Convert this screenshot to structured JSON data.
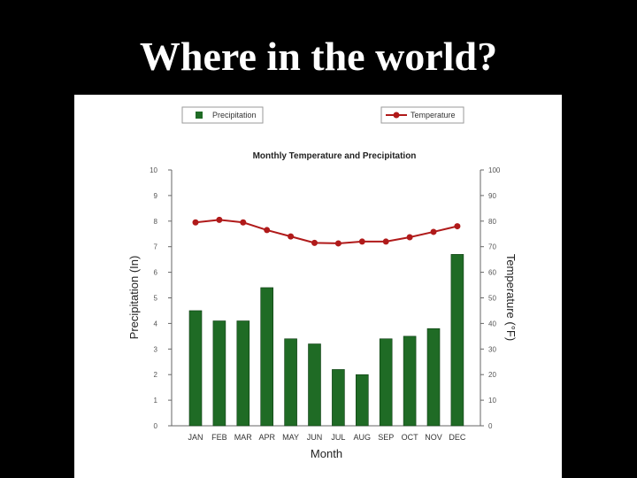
{
  "slide": {
    "title": "Where in the world?"
  },
  "chart_data": {
    "type": "bar",
    "title": "Monthly Temperature and Precipitation",
    "xlabel": "Month",
    "categories": [
      "JAN",
      "FEB",
      "MAR",
      "APR",
      "MAY",
      "JUN",
      "JUL",
      "AUG",
      "SEP",
      "OCT",
      "NOV",
      "DEC"
    ],
    "series": [
      {
        "name": "Precipitation",
        "type": "bar",
        "axis": "left",
        "color": "#1f6b25",
        "values": [
          4.5,
          4.1,
          4.1,
          5.4,
          3.4,
          3.2,
          2.2,
          2.0,
          3.4,
          3.5,
          3.8,
          6.7
        ]
      },
      {
        "name": "Temperature",
        "type": "line",
        "axis": "right",
        "color": "#b01a1a",
        "values": [
          79.5,
          80.5,
          79.5,
          76.5,
          74.0,
          71.5,
          71.3,
          72.0,
          72.0,
          73.7,
          75.8,
          78.0
        ]
      }
    ],
    "y_left": {
      "label": "Precipitation (In)",
      "ylim": [
        0,
        10
      ],
      "ticks": [
        "0",
        "1",
        "2",
        "3",
        "4",
        "5",
        "6",
        "7",
        "8",
        "9",
        "10"
      ]
    },
    "y_right": {
      "label": "Temperature (°F)",
      "ylim": [
        0,
        100
      ],
      "ticks": [
        "0",
        "10",
        "20",
        "30",
        "40",
        "50",
        "60",
        "70",
        "80",
        "90",
        "100"
      ]
    },
    "grid": false,
    "legend": "top"
  }
}
